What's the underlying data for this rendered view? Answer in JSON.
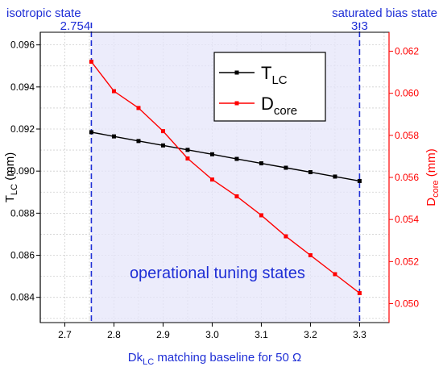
{
  "chart_data": {
    "type": "line",
    "x": [
      2.754,
      2.8,
      2.85,
      2.9,
      2.95,
      3.0,
      3.05,
      3.1,
      3.15,
      3.2,
      3.25,
      3.3
    ],
    "series": [
      {
        "name": "T",
        "name_sub": "LC",
        "axis": "left",
        "color": "#000000",
        "values": [
          0.09185,
          0.09165,
          0.09143,
          0.09122,
          0.09101,
          0.0908,
          0.09058,
          0.09037,
          0.09016,
          0.08995,
          0.08974,
          0.08953
        ]
      },
      {
        "name": "D",
        "name_sub": "core",
        "axis": "right",
        "color": "#ff0000",
        "values": [
          0.0615,
          0.0601,
          0.0593,
          0.0582,
          0.0569,
          0.0559,
          0.0551,
          0.0542,
          0.0532,
          0.0523,
          0.0514,
          0.0505
        ]
      }
    ],
    "xlim": [
      2.65,
      3.36
    ],
    "ylim_left": [
      0.0828,
      0.0966
    ],
    "ylim_right": [
      0.0491,
      0.0629
    ],
    "x_ticks": [
      "2.7",
      "2.8",
      "2.9",
      "3.0",
      "3.1",
      "3.2",
      "3.3"
    ],
    "y_left_ticks": [
      "0.084",
      "0.086",
      "0.088",
      "0.090",
      "0.092",
      "0.094",
      "0.096"
    ],
    "y_right_ticks": [
      "0.050",
      "0.052",
      "0.054",
      "0.056",
      "0.058",
      "0.060",
      "0.062"
    ],
    "xlabel": {
      "main": "Dk",
      "sub": "LC",
      "rest": " matching baseline for 50 Ω"
    },
    "ylabel_left": {
      "main": "T",
      "sub": "LC",
      "rest": " (mm)"
    },
    "ylabel_right": {
      "main": "D",
      "sub": "core",
      "rest": " (mm)"
    },
    "top_annotations": [
      {
        "label": "isotropic state",
        "value": "2.754",
        "x": 2.754
      },
      {
        "label": "saturated bias state",
        "value": "3.3",
        "x": 3.3
      }
    ],
    "region": {
      "x_start": 2.754,
      "x_end": 3.3,
      "label": "operational tuning states",
      "color": "#e6e6fa"
    },
    "grid": true,
    "legend_position": "top-right",
    "colors": {
      "accent_blue": "#1f2fd6",
      "right_axis": "#ff0000",
      "left_axis": "#000000"
    }
  }
}
